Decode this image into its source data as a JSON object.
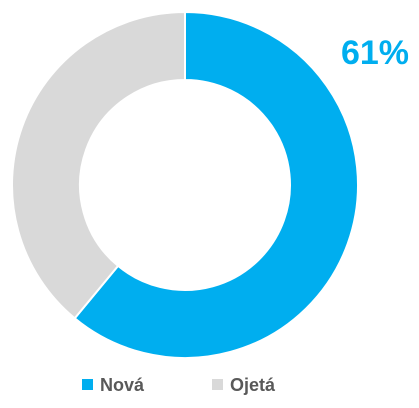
{
  "chart_data": {
    "type": "donut",
    "categories": [
      "Nová",
      "Ojetá"
    ],
    "values": [
      61,
      39
    ],
    "value_labels": [
      "61%",
      null
    ],
    "colors": [
      "#00aeef",
      "#d9d9d9"
    ],
    "legend": "bottom"
  }
}
